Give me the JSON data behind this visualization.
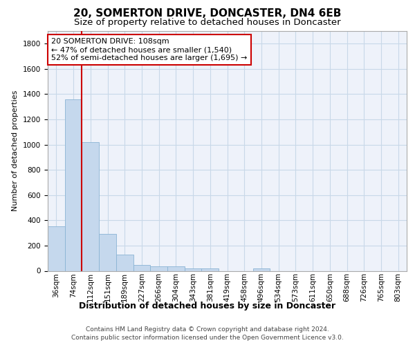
{
  "title": "20, SOMERTON DRIVE, DONCASTER, DN4 6EB",
  "subtitle": "Size of property relative to detached houses in Doncaster",
  "xlabel": "Distribution of detached houses by size in Doncaster",
  "ylabel": "Number of detached properties",
  "categories": [
    "36sqm",
    "74sqm",
    "112sqm",
    "151sqm",
    "189sqm",
    "227sqm",
    "266sqm",
    "304sqm",
    "343sqm",
    "381sqm",
    "419sqm",
    "458sqm",
    "496sqm",
    "534sqm",
    "573sqm",
    "611sqm",
    "650sqm",
    "688sqm",
    "726sqm",
    "765sqm",
    "803sqm"
  ],
  "values": [
    350,
    1360,
    1020,
    290,
    130,
    45,
    35,
    35,
    20,
    20,
    0,
    0,
    20,
    0,
    0,
    0,
    0,
    0,
    0,
    0,
    0
  ],
  "bar_color": "#c5d8ed",
  "bar_edge_color": "#8ab4d4",
  "grid_color": "#c8d8e8",
  "background_color": "#ffffff",
  "plot_bg_color": "#eef2fa",
  "property_label": "20 SOMERTON DRIVE: 108sqm",
  "annotation_line1": "← 47% of detached houses are smaller (1,540)",
  "annotation_line2": "52% of semi-detached houses are larger (1,695) →",
  "red_line_color": "#cc0000",
  "annotation_box_color": "#ffffff",
  "annotation_box_edge": "#cc0000",
  "ylim": [
    0,
    1900
  ],
  "yticks": [
    0,
    200,
    400,
    600,
    800,
    1000,
    1200,
    1400,
    1600,
    1800
  ],
  "footer_line1": "Contains HM Land Registry data © Crown copyright and database right 2024.",
  "footer_line2": "Contains public sector information licensed under the Open Government Licence v3.0.",
  "title_fontsize": 11,
  "subtitle_fontsize": 9.5,
  "xlabel_fontsize": 9,
  "ylabel_fontsize": 8,
  "tick_fontsize": 7.5,
  "annotation_fontsize": 8,
  "footer_fontsize": 6.5
}
